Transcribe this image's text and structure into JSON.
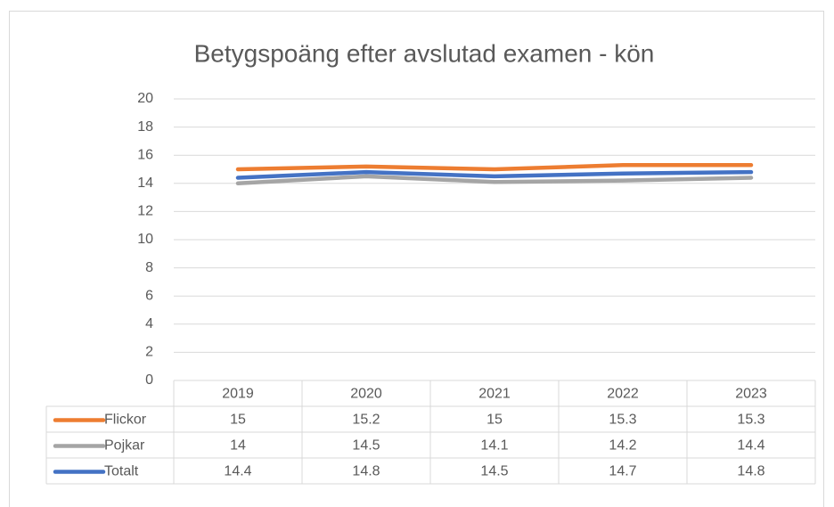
{
  "chart_data": {
    "type": "line",
    "title": "Betygspoäng efter avslutad examen - kön",
    "categories": [
      "2019",
      "2020",
      "2021",
      "2022",
      "2023"
    ],
    "series": [
      {
        "name": "Flickor",
        "color": "#ED7D31",
        "values": [
          15,
          15.2,
          15,
          15.3,
          15.3
        ]
      },
      {
        "name": "Pojkar",
        "color": "#A5A5A5",
        "values": [
          14,
          14.5,
          14.1,
          14.2,
          14.4
        ]
      },
      {
        "name": "Totalt",
        "color": "#4472C4",
        "values": [
          14.4,
          14.8,
          14.5,
          14.7,
          14.8
        ]
      }
    ],
    "ylim": [
      0,
      20
    ],
    "yticks": [
      0,
      2,
      4,
      6,
      8,
      10,
      12,
      14,
      16,
      18,
      20
    ],
    "grid": true
  }
}
